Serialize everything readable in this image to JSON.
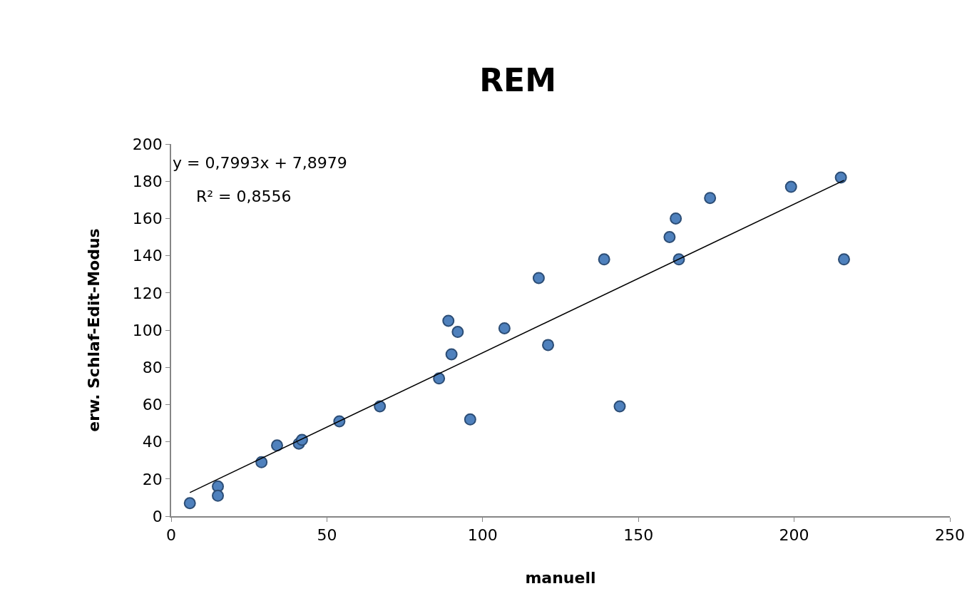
{
  "chart_data": {
    "type": "scatter",
    "title": "REM",
    "xlabel": "manuell",
    "ylabel": "erw. Schlaf-Edit-Modus",
    "xlim": [
      0,
      250
    ],
    "xticks": [
      0,
      50,
      100,
      150,
      200,
      250
    ],
    "ylim": [
      0,
      200
    ],
    "yticks": [
      0,
      20,
      40,
      60,
      80,
      100,
      120,
      140,
      160,
      180,
      200
    ],
    "grid": false,
    "series": [
      {
        "color": "#4f81bd",
        "marker": "circle",
        "x": [
          6,
          15,
          15,
          29,
          34,
          41,
          42,
          54,
          67,
          86,
          89,
          90,
          92,
          96,
          107,
          118,
          121,
          139,
          144,
          160,
          162,
          163,
          173,
          199,
          215,
          216
        ],
        "values": [
          7,
          16,
          11,
          29,
          38,
          39,
          41,
          51,
          59,
          74,
          105,
          87,
          99,
          52,
          101,
          128,
          92,
          138,
          59,
          150,
          160,
          138,
          171,
          177,
          182,
          138
        ]
      },
      {
        "type": "line",
        "color": "#000000",
        "line_style": "solid",
        "x": [
          6,
          216
        ],
        "values": [
          12.7,
          180.5
        ]
      }
    ],
    "annotations": [
      "y = 0,7993x + 7,8979",
      "R² = 0,8556"
    ]
  }
}
